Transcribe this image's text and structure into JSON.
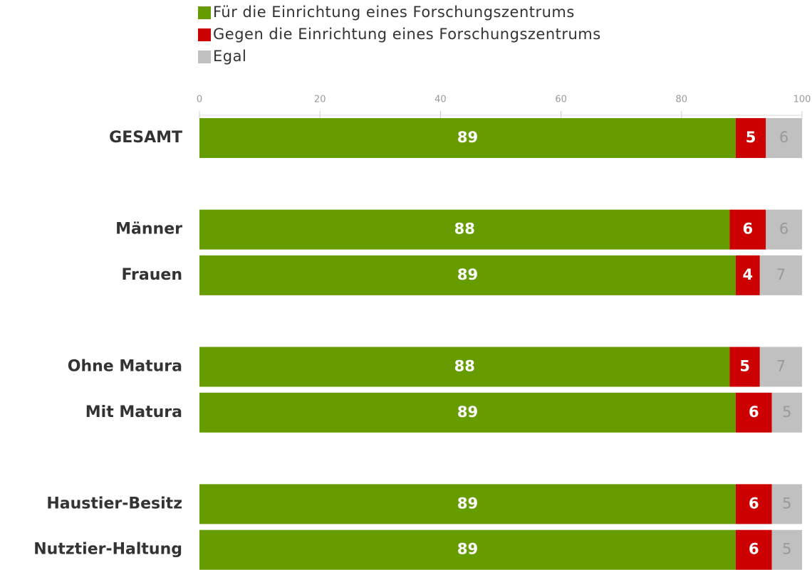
{
  "chart_data": {
    "type": "stacked-bar-horizontal",
    "categories": [
      "GESAMT",
      null,
      "Männer",
      "Frauen",
      null,
      "Ohne Matura",
      "Mit Matura",
      null,
      "Haustier-Besitz",
      "Nutztier-Haltung"
    ],
    "series": [
      {
        "name": "Für die Einrichtung eines Forschungszentrums",
        "color": "#669c00",
        "values": [
          89,
          null,
          88,
          89,
          null,
          88,
          89,
          null,
          89,
          89
        ]
      },
      {
        "name": "Gegen die Einrichtung eines Forschungszentrums",
        "color": "#cc0000",
        "values": [
          5,
          null,
          6,
          4,
          null,
          5,
          6,
          null,
          6,
          6
        ]
      },
      {
        "name": "Egal",
        "color": "#c0c0c0",
        "values": [
          6,
          null,
          6,
          7,
          null,
          7,
          5,
          null,
          5,
          5
        ]
      }
    ],
    "xlim": [
      0,
      100
    ],
    "xticks": [
      0,
      20,
      40,
      60,
      80,
      100
    ],
    "legend": "top-left"
  }
}
